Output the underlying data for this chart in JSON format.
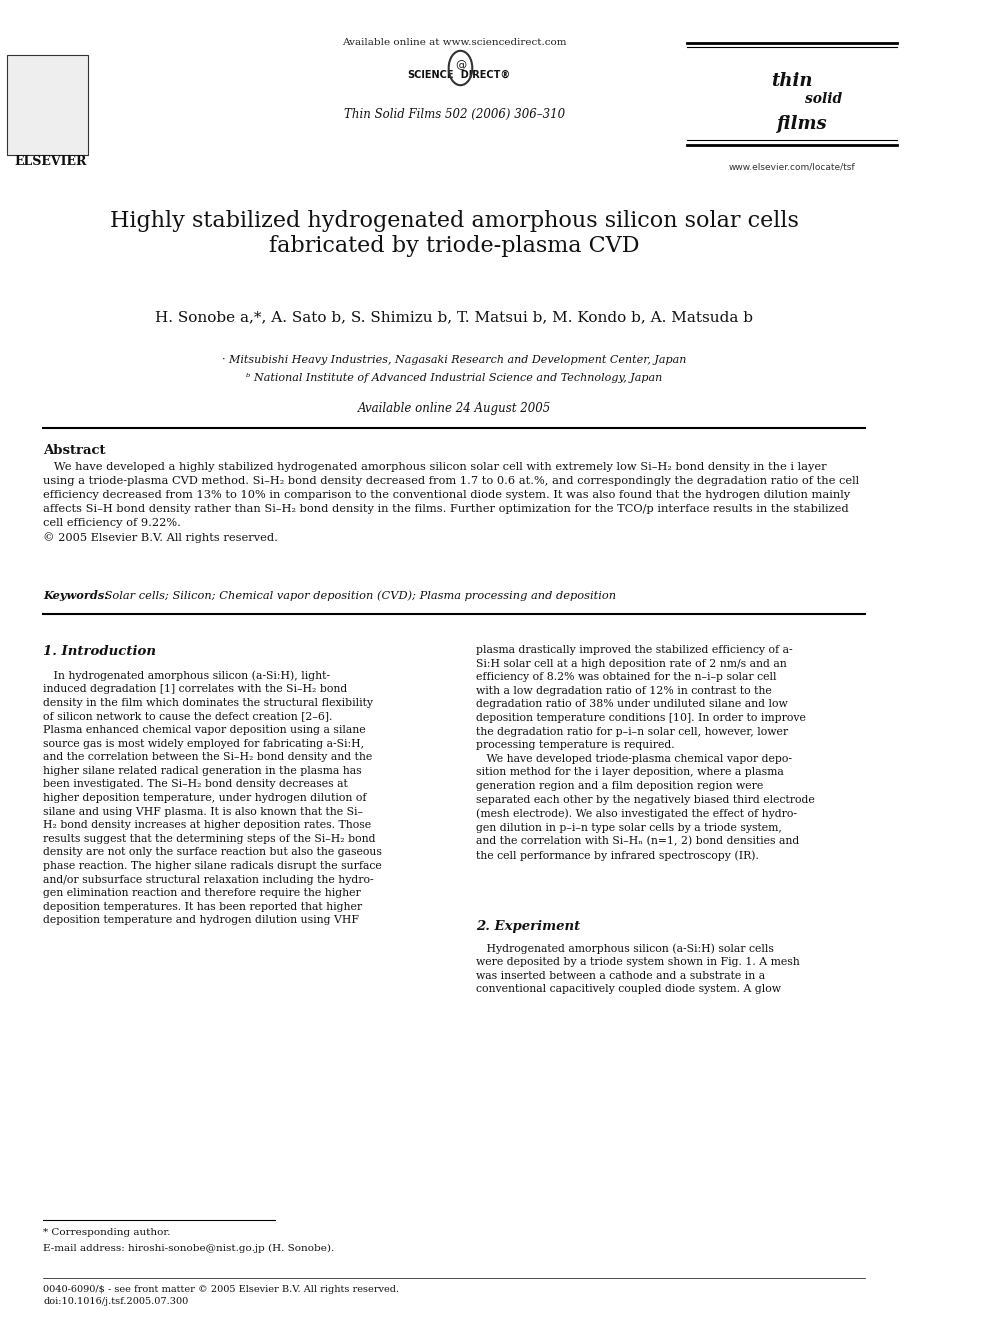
{
  "page_width": 9.92,
  "page_height": 13.23,
  "background_color": "#ffffff",
  "header": {
    "available_online_text": "Available online at www.sciencedirect.com",
    "journal_ref": "Thin Solid Films 502 (2006) 306–310",
    "elsevier_label": "ELSEVIER",
    "www_text": "www.elsevier.com/locate/tsf"
  },
  "title": "Highly stabilized hydrogenated amorphous silicon solar cells\nfabricated by triode-plasma CVD",
  "authors": "H. Sonobe a,*, A. Sato b, S. Shimizu b, T. Matsui b, M. Kondo b, A. Matsuda b",
  "affiliation_a": "· Mitsubishi Heavy Industries, Nagasaki Research and Development Center, Japan",
  "affiliation_b": "ᵇ National Institute of Advanced Industrial Science and Technology, Japan",
  "available_online": "Available online 24 August 2005",
  "abstract_heading": "Abstract",
  "abstract_text": "   We have developed a highly stabilized hydrogenated amorphous silicon solar cell with extremely low Si–H₂ bond density in the i layer using a triode-plasma CVD method. Si–H₂ bond density decreased from 1.7 to 0.6 at.%, and correspondingly the degradation ratio of the cell efficiency decreased from 13% to 10% in comparison to the conventional diode system. It was also found that the hydrogen dilution mainly affects Si–H bond density rather than Si–H₂ bond density in the films. Further optimization for the TCO/p interface results in the stabilized cell efficiency of 9.22%.\n© 2005 Elsevier B.V. All rights reserved.",
  "keywords_label": "Keywords:",
  "keywords_text": " Solar cells; Silicon; Chemical vapor deposition (CVD); Plasma processing and deposition",
  "section1_heading": "1. Introduction",
  "section1_left": "   In hydrogenated amorphous silicon (a-Si:H), light-induced degradation [1] correlates with the Si–H₂ bond density in the film which dominates the structural flexibility of silicon network to cause the defect creation [2–6]. Plasma enhanced chemical vapor deposition using a silane source gas is most widely employed for fabricating a-Si:H, and the correlation between the Si–H₂ bond density and the higher silane related radical generation in the plasma has been investigated. The Si–H₂ bond density decreases at higher deposition temperature, under hydrogen dilution of silane and using VHF plasma. It is also known that the Si–H₂ bond density increases at higher deposition rates. Those results suggest that the determining steps of the Si–H₂ bond density are not only the surface reaction but also the gaseous phase reaction. The higher silane radicals disrupt the surface and/or subsurface structural relaxation including the hydrogen elimination reaction and therefore require the higher deposition temperatures. It has been reported that higher deposition temperature and hydrogen dilution using VHF",
  "section1_right": "plasma drastically improved the stabilized efficiency of a-Si:H solar cell at a high deposition rate of 2 nm/s and an efficiency of 8.2% was obtained for the n–i–p solar cell with a low degradation ratio of 12% in contrast to the degradation ratio of 38% under undiluted silane and low deposition temperature conditions [10]. In order to improve the degradation ratio for p–i–n solar cell, however, lower processing temperature is required.\n   We have developed triode-plasma chemical vapor deposition method for the i layer deposition, where a plasma generation region and a film deposition region were separated each other by the negatively biased third electrode (mesh electrode). We also investigated the effect of hydrogen dilution in p–i–n type solar cells by a triode system, and the correlation with Si–Hₙ (n=1, 2) bond densities and the cell performance by infrared spectroscopy (IR).",
  "section2_heading": "2. Experiment",
  "section2_right": "   Hydrogenated amorphous silicon (a-Si:H) solar cells were deposited by a triode system shown in Fig. 1. A mesh was inserted between a cathode and a substrate in a conventional capacitively coupled diode system. A glow",
  "footnote_corresponding": "* Corresponding author.",
  "footnote_email": "E-mail address: hiroshi-sonobe@nist.go.jp (H. Sonobe).",
  "footnote_issn": "0040-6090/$ - see front matter © 2005 Elsevier B.V. All rights reserved.\ndoi:10.1016/j.tsf.2005.07.300"
}
